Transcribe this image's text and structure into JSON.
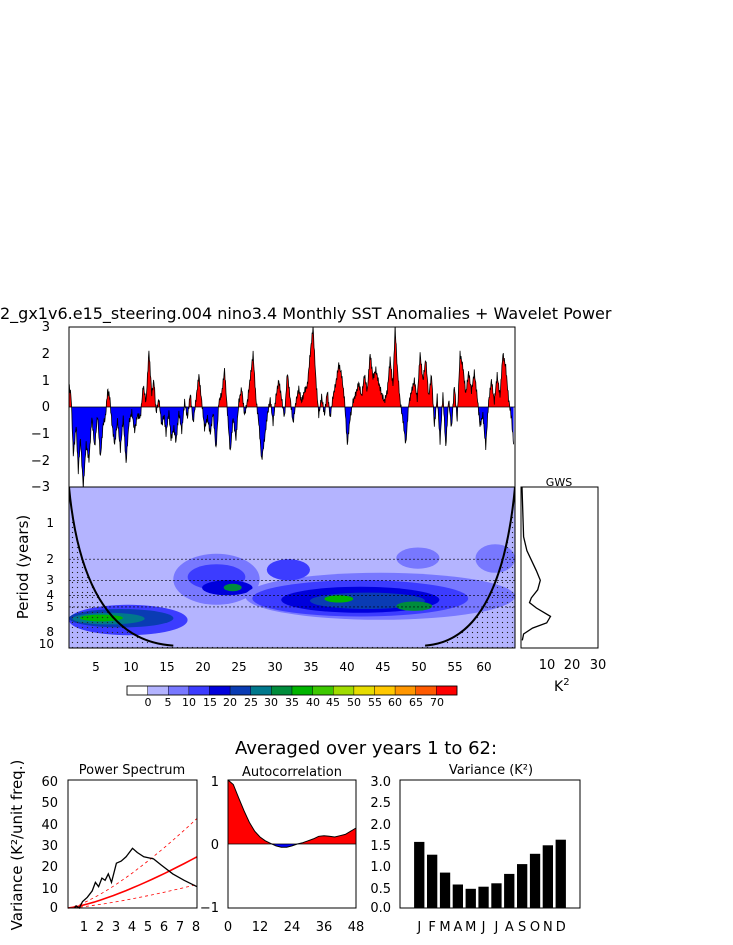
{
  "title": "2_gx1v6.e15_steering.004 nino3.4 Monthly SST Anomalies + Wavelet Power",
  "colors": {
    "positive": "#ff0000",
    "negative": "#0000ff",
    "wavelet_levels": [
      "#ffffff",
      "#b4b4ff",
      "#7878ff",
      "#3c3cff",
      "#0000dc",
      "#0a3cb4",
      "#00788c",
      "#008c3c",
      "#00b400",
      "#3cc800",
      "#a0dc00",
      "#e6dc00",
      "#ffc800",
      "#ff9600",
      "#ff5a00",
      "#ff0000"
    ]
  },
  "panel_sst": {
    "yticks": [
      "3",
      "2",
      "1",
      "0",
      "−1",
      "−2",
      "−3"
    ]
  },
  "panel_wavelet": {
    "ylabel": "Period (years)",
    "yticks": [
      "1",
      "2",
      "3",
      "4",
      "5",
      "8",
      "10"
    ],
    "xticks": [
      "5",
      "10",
      "15",
      "20",
      "25",
      "30",
      "35",
      "40",
      "45",
      "50",
      "55",
      "60"
    ]
  },
  "panel_gws": {
    "title": "GWS",
    "xticks": [
      "10",
      "20",
      "30"
    ],
    "xlabel": "K",
    "xlabel_sup": "2"
  },
  "colorbar": {
    "labels": [
      "0",
      "5",
      "10",
      "15",
      "20",
      "25",
      "30",
      "35",
      "40",
      "45",
      "50",
      "55",
      "60",
      "65",
      "70"
    ]
  },
  "averaged_title": "Averaged over years 1 to 62:",
  "bottom_ylabel": "Variance (K²/unit freq.)",
  "panel_power": {
    "title": "Power Spectrum",
    "yticks": [
      "60",
      "50",
      "40",
      "30",
      "20",
      "10",
      "0"
    ],
    "xticks": [
      "1",
      "2",
      "3",
      "4",
      "5",
      "6",
      "7",
      "8"
    ]
  },
  "panel_autocorr": {
    "title": "Autocorrelation",
    "yticks": [
      "1",
      "0",
      "−1"
    ],
    "xticks": [
      "0",
      "12",
      "24",
      "36",
      "48"
    ]
  },
  "panel_variance": {
    "title": "Variance (K²)",
    "yticks": [
      "3.0",
      "2.5",
      "2.0",
      "1.5",
      "1.0",
      "0.5",
      "0.0"
    ],
    "xticks": [
      "J",
      "F",
      "M",
      "A",
      "M",
      "J",
      "J",
      "A",
      "S",
      "O",
      "N",
      "D"
    ]
  },
  "chart_data": [
    {
      "type": "area",
      "name": "nino3.4 monthly SST anomalies",
      "xlim": [
        0,
        62.5
      ],
      "ylim": [
        -3,
        3
      ],
      "x_units": "years",
      "anomaly_keypoints": [
        [
          0,
          0.8
        ],
        [
          0.3,
          0.4
        ],
        [
          0.6,
          -1.8
        ],
        [
          1.0,
          -0.7
        ],
        [
          1.3,
          -2.4
        ],
        [
          1.6,
          -1.2
        ],
        [
          2.0,
          -3.0
        ],
        [
          2.4,
          -1.4
        ],
        [
          2.8,
          -2.0
        ],
        [
          3.2,
          -0.4
        ],
        [
          3.6,
          -1.5
        ],
        [
          4.0,
          -0.3
        ],
        [
          4.4,
          -1.9
        ],
        [
          4.8,
          -0.6
        ],
        [
          5.1,
          -0.4
        ],
        [
          5.4,
          0.6
        ],
        [
          5.7,
          0.4
        ],
        [
          6.0,
          -0.6
        ],
        [
          6.4,
          -1.4
        ],
        [
          6.8,
          -0.5
        ],
        [
          7.2,
          -1.6
        ],
        [
          7.6,
          -0.4
        ],
        [
          8.0,
          -2.1
        ],
        [
          8.4,
          -0.6
        ],
        [
          8.8,
          -0.2
        ],
        [
          9.2,
          -0.9
        ],
        [
          9.6,
          -0.3
        ],
        [
          10.0,
          -0.4
        ],
        [
          10.4,
          0.8
        ],
        [
          10.8,
          0.2
        ],
        [
          11.2,
          2.1
        ],
        [
          11.6,
          0.5
        ],
        [
          11.9,
          1.0
        ],
        [
          12.2,
          -0.2
        ],
        [
          12.6,
          0.3
        ],
        [
          13.0,
          -0.7
        ],
        [
          13.3,
          -0.3
        ],
        [
          13.6,
          -1.0
        ],
        [
          14.0,
          -0.2
        ],
        [
          14.3,
          -1.2
        ],
        [
          14.7,
          -0.8
        ],
        [
          15.0,
          -1.3
        ],
        [
          15.4,
          -0.2
        ],
        [
          15.8,
          -0.9
        ],
        [
          16.2,
          0.2
        ],
        [
          16.6,
          -0.4
        ],
        [
          17.0,
          0.5
        ],
        [
          17.4,
          -0.6
        ],
        [
          17.8,
          0.3
        ],
        [
          18.2,
          1.2
        ],
        [
          18.6,
          0.2
        ],
        [
          19.0,
          -0.8
        ],
        [
          19.4,
          -0.4
        ],
        [
          19.8,
          -1.0
        ],
        [
          20.2,
          -0.2
        ],
        [
          20.6,
          -1.6
        ],
        [
          21.0,
          0.2
        ],
        [
          21.4,
          0.5
        ],
        [
          21.8,
          1.4
        ],
        [
          22.2,
          -0.2
        ],
        [
          22.6,
          -1.7
        ],
        [
          23.0,
          -0.4
        ],
        [
          23.4,
          -1.2
        ],
        [
          23.8,
          0.2
        ],
        [
          24.2,
          0.7
        ],
        [
          24.6,
          -0.3
        ],
        [
          25.0,
          0.2
        ],
        [
          25.4,
          1.1
        ],
        [
          25.8,
          2.0
        ],
        [
          26.2,
          0.3
        ],
        [
          26.6,
          -0.6
        ],
        [
          27.0,
          -2.0
        ],
        [
          27.4,
          -1.2
        ],
        [
          27.8,
          -0.3
        ],
        [
          28.2,
          0.3
        ],
        [
          28.6,
          -0.6
        ],
        [
          29.0,
          0.4
        ],
        [
          29.4,
          1.0
        ],
        [
          29.8,
          0.3
        ],
        [
          30.2,
          -0.4
        ],
        [
          30.6,
          1.3
        ],
        [
          31.0,
          0.3
        ],
        [
          31.4,
          -0.6
        ],
        [
          31.8,
          0.2
        ],
        [
          32.2,
          0.7
        ],
        [
          32.6,
          0.2
        ],
        [
          33.0,
          0.6
        ],
        [
          33.4,
          0.8
        ],
        [
          33.8,
          2.0
        ],
        [
          34.2,
          3.0
        ],
        [
          34.6,
          1.0
        ],
        [
          35.0,
          -0.3
        ],
        [
          35.4,
          0.4
        ],
        [
          35.8,
          -0.3
        ],
        [
          36.2,
          0.6
        ],
        [
          36.6,
          -0.4
        ],
        [
          37.0,
          0.4
        ],
        [
          37.4,
          0.9
        ],
        [
          37.8,
          1.6
        ],
        [
          38.2,
          1.2
        ],
        [
          38.6,
          0.3
        ],
        [
          39.0,
          -1.4
        ],
        [
          39.4,
          -0.4
        ],
        [
          39.8,
          0.2
        ],
        [
          40.2,
          0.5
        ],
        [
          40.6,
          0.9
        ],
        [
          41.0,
          0.4
        ],
        [
          41.4,
          1.2
        ],
        [
          41.8,
          0.6
        ],
        [
          42.2,
          2.0
        ],
        [
          42.6,
          1.1
        ],
        [
          43.0,
          1.4
        ],
        [
          43.4,
          0.9
        ],
        [
          43.8,
          0.5
        ],
        [
          44.2,
          0.2
        ],
        [
          44.6,
          0.6
        ],
        [
          45.0,
          1.8
        ],
        [
          45.4,
          0.8
        ],
        [
          45.7,
          3.0
        ],
        [
          46.0,
          1.5
        ],
        [
          46.4,
          0.2
        ],
        [
          46.8,
          -0.5
        ],
        [
          47.2,
          -1.4
        ],
        [
          47.6,
          0.1
        ],
        [
          48.0,
          0.6
        ],
        [
          48.4,
          1.0
        ],
        [
          48.8,
          0.3
        ],
        [
          49.2,
          2.0
        ],
        [
          49.6,
          1.0
        ],
        [
          50.0,
          1.8
        ],
        [
          50.4,
          0.4
        ],
        [
          50.8,
          1.2
        ],
        [
          51.2,
          -0.7
        ],
        [
          51.6,
          0.4
        ],
        [
          52.0,
          -1.3
        ],
        [
          52.4,
          0.5
        ],
        [
          52.8,
          -1.5
        ],
        [
          53.2,
          0.3
        ],
        [
          53.6,
          -0.8
        ],
        [
          54.0,
          0.8
        ],
        [
          54.4,
          -0.5
        ],
        [
          54.8,
          2.0
        ],
        [
          55.2,
          1.5
        ],
        [
          55.6,
          0.5
        ],
        [
          56.0,
          1.3
        ],
        [
          56.4,
          0.6
        ],
        [
          56.8,
          1.3
        ],
        [
          57.2,
          0.4
        ],
        [
          57.6,
          -0.7
        ],
        [
          58.0,
          -0.3
        ],
        [
          58.4,
          -1.5
        ],
        [
          58.8,
          0.2
        ],
        [
          59.2,
          1.0
        ],
        [
          59.6,
          0.2
        ],
        [
          60.0,
          1.2
        ],
        [
          60.4,
          0.4
        ],
        [
          60.8,
          2.0
        ],
        [
          61.2,
          1.5
        ],
        [
          61.6,
          0.3
        ],
        [
          62.0,
          -0.4
        ],
        [
          62.3,
          -1.4
        ]
      ]
    },
    {
      "type": "heatmap",
      "name": "wavelet power",
      "xlim": [
        0.5,
        62.5
      ],
      "ylim_period": [
        0.5,
        11
      ],
      "y_axis": "log period (years)",
      "levels": [
        0,
        5,
        10,
        15,
        20,
        25,
        30,
        35,
        40,
        45,
        50,
        55,
        60,
        65,
        70
      ],
      "significance_periods": [
        2,
        3,
        4,
        5
      ],
      "cone_edges": [
        [
          0.5,
          0.5
        ],
        [
          15,
          10.5
        ],
        [
          50,
          10.5
        ],
        [
          62.5,
          0.5
        ]
      ],
      "power_blobs": [
        {
          "x": [
            0.5,
            17
          ],
          "period": [
            4.8,
            8.6
          ],
          "level": 10
        },
        {
          "x": [
            0.5,
            15
          ],
          "period": [
            5.2,
            7.4
          ],
          "level": 20
        },
        {
          "x": [
            1,
            11
          ],
          "period": [
            5.6,
            7.0
          ],
          "level": 25
        },
        {
          "x": [
            2,
            8
          ],
          "period": [
            5.8,
            6.6
          ],
          "level": 35
        },
        {
          "x": [
            15,
            27
          ],
          "period": [
            1.8,
            4.8
          ],
          "level": 5
        },
        {
          "x": [
            17,
            25
          ],
          "period": [
            2.2,
            3.6
          ],
          "level": 10
        },
        {
          "x": [
            19,
            26
          ],
          "period": [
            3.0,
            4.0
          ],
          "level": 15
        },
        {
          "x": [
            22,
            24.5
          ],
          "period": [
            3.2,
            3.7
          ],
          "level": 30
        },
        {
          "x": [
            25,
            62.5
          ],
          "period": [
            2.6,
            6.4
          ],
          "level": 5
        },
        {
          "x": [
            26,
            56
          ],
          "period": [
            3.0,
            6.0
          ],
          "level": 10
        },
        {
          "x": [
            30,
            52
          ],
          "period": [
            3.4,
            5.6
          ],
          "level": 15
        },
        {
          "x": [
            34,
            50
          ],
          "period": [
            3.8,
            5.2
          ],
          "level": 20
        },
        {
          "x": [
            36,
            40
          ],
          "period": [
            4.0,
            4.6
          ],
          "level": 35
        },
        {
          "x": [
            46,
            51
          ],
          "period": [
            4.5,
            5.4
          ],
          "level": 30
        },
        {
          "x": [
            28,
            34
          ],
          "period": [
            2.0,
            3.0
          ],
          "level": 10
        },
        {
          "x": [
            46,
            52
          ],
          "period": [
            1.6,
            2.4
          ],
          "level": 5
        },
        {
          "x": [
            57,
            62.5
          ],
          "period": [
            1.5,
            2.6
          ],
          "level": 5
        }
      ]
    },
    {
      "type": "line",
      "name": "Global Wavelet Spectrum",
      "x_label": "K^2",
      "xlim": [
        0,
        30
      ],
      "y_axis": "period (years)",
      "points": [
        [
          0.4,
          0.5
        ],
        [
          1.0,
          1.3
        ],
        [
          2.3,
          1.7
        ],
        [
          6.0,
          2.5
        ],
        [
          7.5,
          3.0
        ],
        [
          6.5,
          3.6
        ],
        [
          4.0,
          4.2
        ],
        [
          3.3,
          4.6
        ],
        [
          6.0,
          5.1
        ],
        [
          11.5,
          6.0
        ],
        [
          10.0,
          6.8
        ],
        [
          4.5,
          7.5
        ],
        [
          1.0,
          8.4
        ],
        [
          0.5,
          9.5
        ]
      ]
    },
    {
      "type": "line",
      "name": "Power Spectrum",
      "xlim": [
        0,
        8
      ],
      "ylim": [
        0,
        60
      ],
      "series": [
        {
          "points": [
            [
              0.4,
              0
            ],
            [
              0.5,
              1
            ],
            [
              0.7,
              0
            ],
            [
              0.9,
              3
            ],
            [
              1.2,
              5
            ],
            [
              1.5,
              8
            ],
            [
              1.7,
              12
            ],
            [
              1.9,
              10
            ],
            [
              2.1,
              14
            ],
            [
              2.3,
              13
            ],
            [
              2.5,
              16
            ],
            [
              2.7,
              12
            ],
            [
              3.0,
              21
            ],
            [
              3.3,
              22
            ],
            [
              3.6,
              24
            ],
            [
              4.0,
              28
            ],
            [
              4.3,
              26
            ],
            [
              4.7,
              24
            ],
            [
              5.3,
              23
            ],
            [
              5.8,
              20
            ],
            [
              6.5,
              16
            ],
            [
              7.2,
              13
            ],
            [
              8.0,
              10
            ]
          ]
        },
        {
          "points": [
            [
              0,
              0
            ],
            [
              8,
              24
            ]
          ]
        },
        {
          "points": [
            [
              0,
              0
            ],
            [
              8,
              42
            ]
          ]
        },
        {
          "points": [
            [
              0,
              0
            ],
            [
              8,
              11
            ]
          ]
        }
      ]
    },
    {
      "type": "area",
      "name": "Autocorrelation",
      "xlim": [
        0,
        48
      ],
      "ylim": [
        -1,
        1
      ],
      "points": [
        [
          0,
          1.0
        ],
        [
          2,
          0.93
        ],
        [
          4,
          0.72
        ],
        [
          6,
          0.52
        ],
        [
          8,
          0.34
        ],
        [
          10,
          0.2
        ],
        [
          12,
          0.11
        ],
        [
          14,
          0.05
        ],
        [
          16,
          0.01
        ],
        [
          18,
          -0.03
        ],
        [
          20,
          -0.05
        ],
        [
          22,
          -0.05
        ],
        [
          24,
          -0.03
        ],
        [
          26,
          0.0
        ],
        [
          28,
          0.02
        ],
        [
          30,
          0.05
        ],
        [
          32,
          0.08
        ],
        [
          34,
          0.12
        ],
        [
          36,
          0.13
        ],
        [
          38,
          0.12
        ],
        [
          40,
          0.11
        ],
        [
          42,
          0.13
        ],
        [
          44,
          0.15
        ],
        [
          46,
          0.2
        ],
        [
          48,
          0.25
        ]
      ]
    },
    {
      "type": "bar",
      "name": "Variance (K²)",
      "categories": [
        "J",
        "F",
        "M",
        "A",
        "M",
        "J",
        "J",
        "A",
        "S",
        "O",
        "N",
        "D"
      ],
      "values": [
        1.55,
        1.25,
        0.83,
        0.55,
        0.45,
        0.5,
        0.58,
        0.8,
        1.03,
        1.27,
        1.47,
        1.6
      ],
      "ylim": [
        0,
        3.0
      ]
    }
  ]
}
